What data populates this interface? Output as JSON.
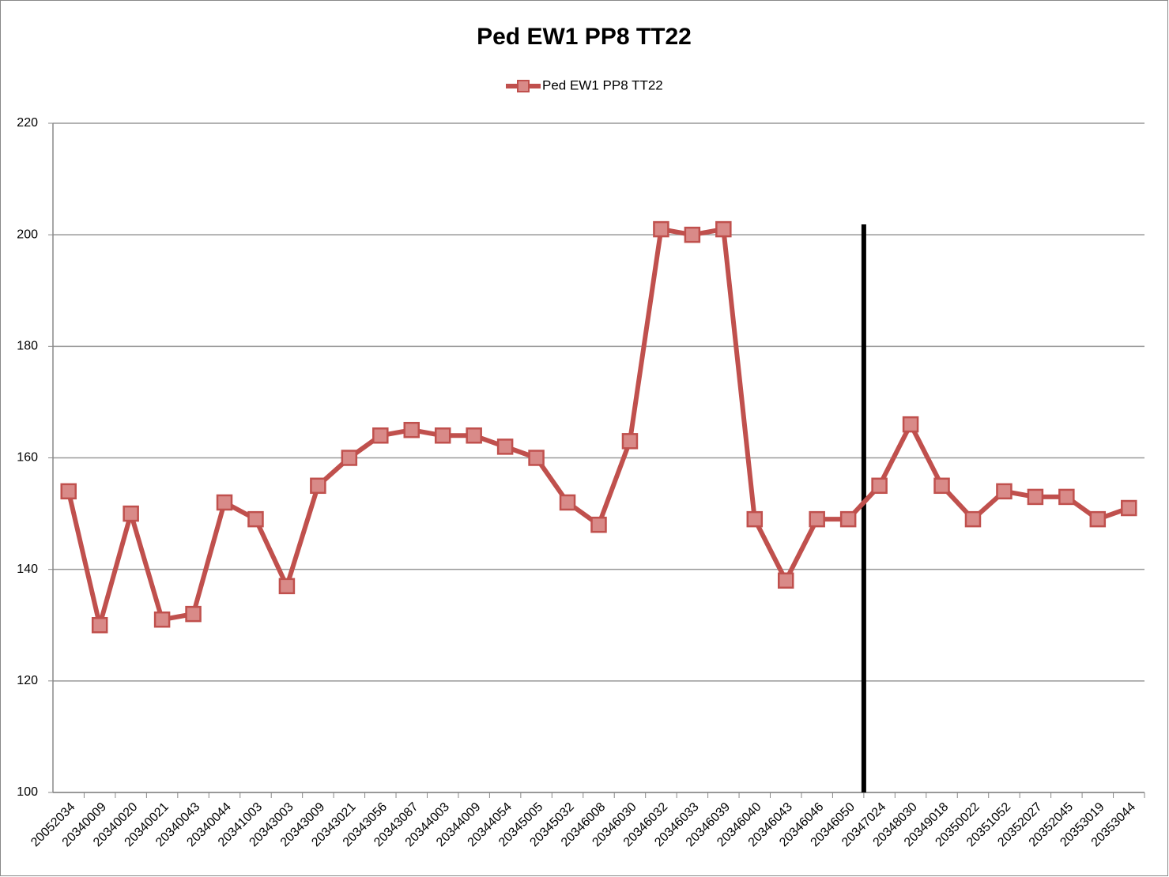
{
  "chart_data": {
    "type": "line",
    "title": "Ped EW1 PP8 TT22",
    "categories": [
      "20052034",
      "20340009",
      "20340020",
      "20340021",
      "20340043",
      "20340044",
      "20341003",
      "20343003",
      "20343009",
      "20343021",
      "20343056",
      "20343087",
      "20344003",
      "20344009",
      "20344054",
      "20345005",
      "20345032",
      "20346008",
      "20346030",
      "20346032",
      "20346033",
      "20346039",
      "20346040",
      "20346043",
      "20346046",
      "20346050",
      "20347024",
      "20348030",
      "20349018",
      "20350022",
      "20351052",
      "20352027",
      "20352045",
      "20353019",
      "20353044"
    ],
    "series": [
      {
        "name": "Ped EW1 PP8 TT22",
        "color": "#c0504d",
        "values": [
          154,
          130,
          150,
          131,
          132,
          152,
          149,
          137,
          155,
          160,
          164,
          165,
          164,
          164,
          162,
          160,
          152,
          148,
          163,
          201,
          200,
          201,
          149,
          138,
          149,
          149,
          155,
          166,
          155,
          149,
          154,
          153,
          153,
          149,
          151
        ]
      }
    ],
    "ylim": [
      100,
      220
    ],
    "yticks": [
      100,
      120,
      140,
      160,
      180,
      200,
      220
    ],
    "grid": true,
    "legend": "top"
  }
}
